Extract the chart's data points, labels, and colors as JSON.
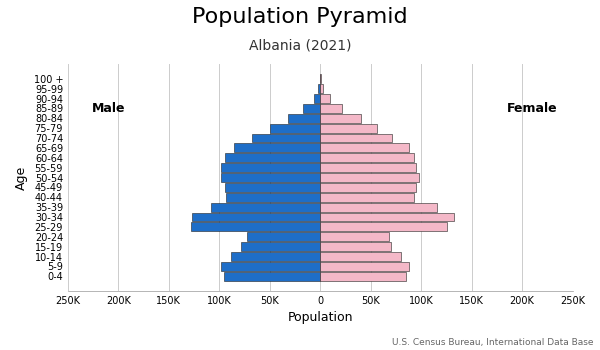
{
  "title": "Population Pyramid",
  "subtitle": "Albania (2021)",
  "xlabel": "Population",
  "ylabel": "Age",
  "source": "U.S. Census Bureau, International Data Base",
  "male_label": "Male",
  "female_label": "Female",
  "age_groups": [
    "0-4",
    "5-9",
    "10-14",
    "15-19",
    "20-24",
    "25-29",
    "30-34",
    "35-39",
    "40-44",
    "45-49",
    "50-54",
    "55-59",
    "60-64",
    "65-69",
    "70-74",
    "75-79",
    "80-84",
    "85-89",
    "90-94",
    "95-99",
    "100 +"
  ],
  "male": [
    95000,
    98000,
    88000,
    78000,
    73000,
    128000,
    127000,
    108000,
    93000,
    94000,
    98000,
    98000,
    94000,
    85000,
    68000,
    50000,
    32000,
    17000,
    6500,
    1800,
    400
  ],
  "female": [
    85000,
    88000,
    80000,
    70000,
    68000,
    126000,
    133000,
    116000,
    93000,
    95000,
    98000,
    95000,
    93000,
    88000,
    71000,
    56000,
    40000,
    22000,
    9500,
    3000,
    800
  ],
  "male_color": "#1e6ec8",
  "female_color": "#f4b8c8",
  "bar_edge_color": "#222222",
  "xlim": 250000,
  "xtick_values": [
    -250000,
    -200000,
    -150000,
    -100000,
    -50000,
    0,
    50000,
    100000,
    150000,
    200000,
    250000
  ],
  "xtick_labels": [
    "250K",
    "200K",
    "150K",
    "100K",
    "50K",
    "0",
    "50K",
    "100K",
    "150K",
    "200K",
    "250K"
  ],
  "background_color": "#ffffff",
  "grid_color": "#cccccc",
  "title_fontsize": 16,
  "subtitle_fontsize": 10,
  "label_fontsize": 9,
  "tick_fontsize": 7,
  "source_fontsize": 6.5
}
